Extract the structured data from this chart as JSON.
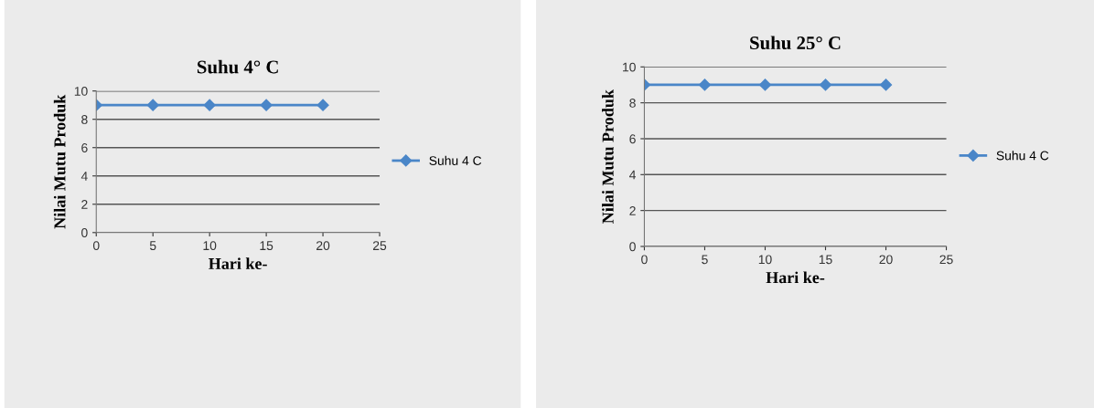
{
  "chart_data": [
    {
      "type": "line",
      "title": "Suhu 4° C",
      "xlabel": "Hari ke-",
      "ylabel": "Nilai Mutu Produk",
      "x": [
        0,
        5,
        10,
        15,
        20
      ],
      "series": [
        {
          "name": "Suhu 4 C",
          "color": "#4a86c8",
          "values": [
            9,
            9,
            9,
            9,
            9
          ]
        }
      ],
      "xlim": [
        0,
        25
      ],
      "xticks": [
        0,
        5,
        10,
        15,
        20,
        25
      ],
      "ylim": [
        0,
        10
      ],
      "yticks": [
        0,
        2,
        4,
        6,
        8,
        10
      ],
      "grid": "y",
      "legend": "right",
      "marker": "diamond",
      "line_style": "solid"
    },
    {
      "type": "line",
      "title": "Suhu 25° C",
      "xlabel": "Hari ke-",
      "ylabel": "Nilai Mutu Produk",
      "x": [
        0,
        5,
        10,
        15,
        20
      ],
      "series": [
        {
          "name": "Suhu 4 C",
          "color": "#4a86c8",
          "values": [
            9,
            9,
            9,
            9,
            9
          ]
        }
      ],
      "xlim": [
        0,
        25
      ],
      "xticks": [
        0,
        5,
        10,
        15,
        20,
        25
      ],
      "ylim": [
        0,
        10
      ],
      "yticks": [
        0,
        2,
        4,
        6,
        8,
        10
      ],
      "grid": "y",
      "legend": "right",
      "marker": "diamond",
      "line_style": "solid"
    }
  ]
}
